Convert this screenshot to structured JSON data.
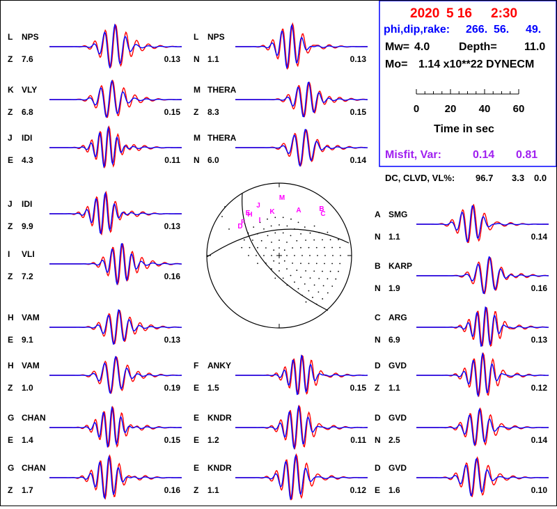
{
  "info_box": {
    "date": "2020",
    "date_md": "5 16",
    "time": "2:30",
    "pdr_label": "phi,dip,rake:",
    "phi": "266.",
    "dip": "56.",
    "rake": "49.",
    "mw_label": "Mw=",
    "mw": "4.0",
    "depth_label": "Depth=",
    "depth": "11.0",
    "mo_label": "Mo=",
    "mo": "1.14 x10**22 DYNECM",
    "time_axis_ticks": [
      "0",
      "20",
      "40",
      "60"
    ],
    "time_axis_label": "Time  in sec",
    "misfit_label": "Misfit, Var:",
    "misfit": "0.14",
    "var": "0.81",
    "dc_label": "DC, CLVD, VL%:",
    "dc": "96.7",
    "clvd": "3.3",
    "vl": "0.0"
  },
  "colors": {
    "observed": "#ff0000",
    "synthetic": "#0000ff",
    "title": "#ff0000",
    "params": "#0000ff",
    "misfit": "#a020f0",
    "station_letters": "#ff00ff",
    "border": "#0000ff"
  },
  "chart_data": {
    "type": "line",
    "description_series": [
      "observed",
      "synthetic"
    ],
    "traces": [
      {
        "letter": "L",
        "station": "NPS",
        "comp": "Z",
        "dist": "7.6",
        "amp": "0.13"
      },
      {
        "letter": "K",
        "station": "VLY",
        "comp": "Z",
        "dist": "6.8",
        "amp": "0.15"
      },
      {
        "letter": "J",
        "station": "IDI",
        "comp": "E",
        "dist": "4.3",
        "amp": "0.11"
      },
      {
        "letter": "J",
        "station": "IDI",
        "comp": "Z",
        "dist": "9.9",
        "amp": "0.13"
      },
      {
        "letter": "I",
        "station": "VLI",
        "comp": "Z",
        "dist": "7.2",
        "amp": "0.16"
      },
      {
        "letter": "H",
        "station": "VAM",
        "comp": "E",
        "dist": "9.1",
        "amp": "0.13"
      },
      {
        "letter": "H",
        "station": "VAM",
        "comp": "Z",
        "dist": "1.0",
        "amp": "0.19"
      },
      {
        "letter": "G",
        "station": "CHAN",
        "comp": "E",
        "dist": "1.4",
        "amp": "0.15"
      },
      {
        "letter": "G",
        "station": "CHAN",
        "comp": "Z",
        "dist": "1.7",
        "amp": "0.16"
      },
      {
        "letter": "L",
        "station": "NPS",
        "comp": "N",
        "dist": "1.1",
        "amp": "0.13"
      },
      {
        "letter": "M",
        "station": "THERA",
        "comp": "Z",
        "dist": "8.3",
        "amp": "0.15"
      },
      {
        "letter": "M",
        "station": "THERA",
        "comp": "N",
        "dist": "6.0",
        "amp": "0.14"
      },
      {
        "letter": "F",
        "station": "ANKY",
        "comp": "E",
        "dist": "1.5",
        "amp": "0.15"
      },
      {
        "letter": "E",
        "station": "KNDR",
        "comp": "E",
        "dist": "1.2",
        "amp": "0.11"
      },
      {
        "letter": "E",
        "station": "KNDR",
        "comp": "Z",
        "dist": "1.1",
        "amp": "0.12"
      },
      {
        "letter": "A",
        "station": "SMG",
        "comp": "N",
        "dist": "1.1",
        "amp": "0.14"
      },
      {
        "letter": "B",
        "station": "KARP",
        "comp": "N",
        "dist": "1.9",
        "amp": "0.16"
      },
      {
        "letter": "C",
        "station": "ARG",
        "comp": "N",
        "dist": "6.9",
        "amp": "0.13"
      },
      {
        "letter": "D",
        "station": "GVD",
        "comp": "Z",
        "dist": "1.1",
        "amp": "0.12"
      },
      {
        "letter": "D",
        "station": "GVD",
        "comp": "N",
        "dist": "2.5",
        "amp": "0.14"
      },
      {
        "letter": "D",
        "station": "GVD",
        "comp": "E",
        "dist": "1.6",
        "amp": "0.10"
      }
    ],
    "beachball_labels": [
      "M",
      "J",
      "K",
      "A",
      "B",
      "C",
      "F",
      "D",
      "I",
      "E",
      "H"
    ]
  }
}
